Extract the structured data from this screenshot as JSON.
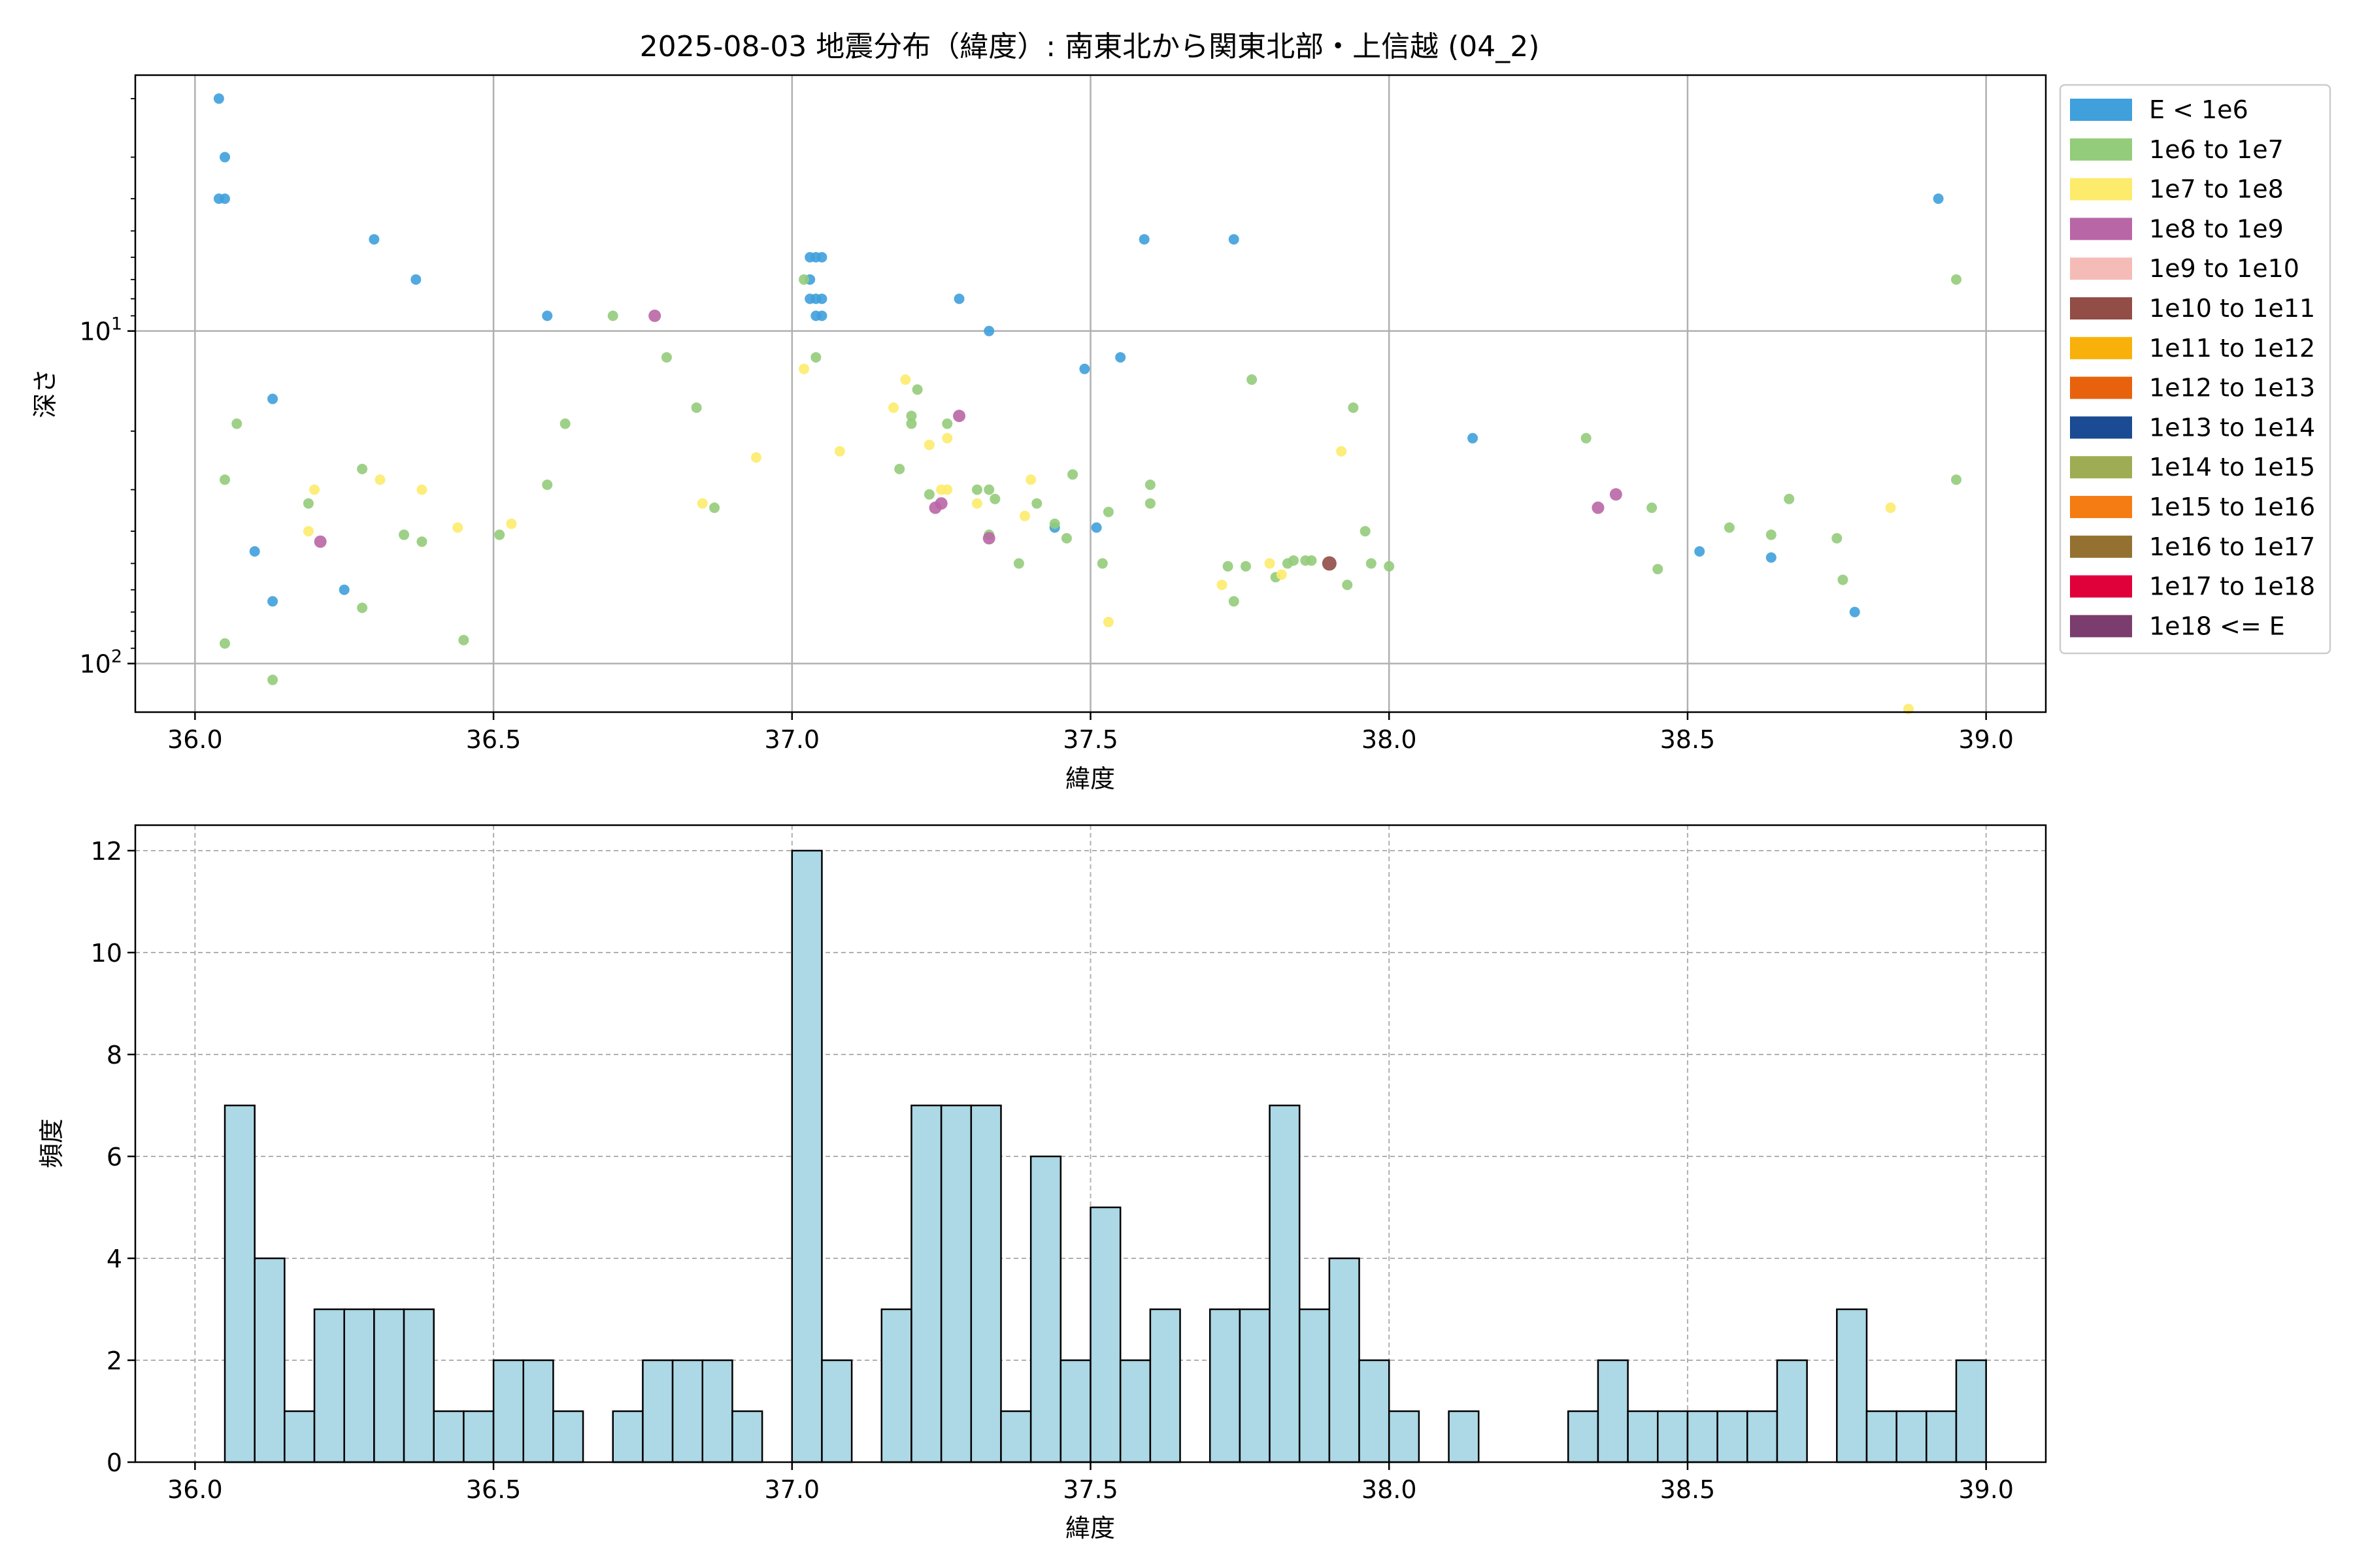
{
  "chart_data": [
    {
      "type": "scatter",
      "title": "2025-08-03 地震分布（緯度）: 南東北から関東北部・上信越 (04_2)",
      "xlabel": "緯度",
      "ylabel": "深さ",
      "xlim": [
        35.9,
        39.1
      ],
      "ylim": [
        140,
        1.7
      ],
      "yscale": "log",
      "yaxis_inverted": true,
      "xticks": [
        "36.0",
        "36.5",
        "37.0",
        "37.5",
        "38.0",
        "38.5",
        "39.0"
      ],
      "yticks": [
        {
          "value": 10,
          "label": "10^1"
        },
        {
          "value": 100,
          "label": "10^2"
        }
      ],
      "grid": true,
      "legend_position": "outside-right",
      "legend": [
        {
          "label": "E < 1e6",
          "color": "#3fa0db"
        },
        {
          "label": "1e6 to 1e7",
          "color": "#93cc7a"
        },
        {
          "label": "1e7 to 1e8",
          "color": "#fdeb6b"
        },
        {
          "label": "1e8 to 1e9",
          "color": "#b966a6"
        },
        {
          "label": "1e9 to 1e10",
          "color": "#f5bcb7"
        },
        {
          "label": "1e10 to 1e11",
          "color": "#914d46"
        },
        {
          "label": "1e11 to 1e12",
          "color": "#f8b10a"
        },
        {
          "label": "1e12 to 1e13",
          "color": "#e8620e"
        },
        {
          "label": "1e13 to 1e14",
          "color": "#1a4b93"
        },
        {
          "label": "1e14 to 1e15",
          "color": "#9ead54"
        },
        {
          "label": "1e15 to 1e16",
          "color": "#f57c13"
        },
        {
          "label": "1e16 to 1e17",
          "color": "#957131"
        },
        {
          "label": "1e17 to 1e18",
          "color": "#e0003a"
        },
        {
          "label": "1e18 <= E",
          "color": "#7b3d6e"
        }
      ],
      "series": [
        {
          "name": "E < 1e6",
          "points": [
            [
              36.04,
              2.0
            ],
            [
              36.05,
              3.0
            ],
            [
              36.04,
              4.0
            ],
            [
              36.05,
              4.0
            ],
            [
              36.3,
              5.3
            ],
            [
              36.37,
              7.0
            ],
            [
              36.59,
              9.0
            ],
            [
              36.1,
              46
            ],
            [
              36.13,
              16
            ],
            [
              36.13,
              65
            ],
            [
              36.25,
              60
            ],
            [
              37.03,
              6.0
            ],
            [
              37.04,
              6.0
            ],
            [
              37.05,
              6.0
            ],
            [
              37.03,
              7.0
            ],
            [
              37.03,
              8.0
            ],
            [
              37.04,
              8.0
            ],
            [
              37.05,
              8.0
            ],
            [
              37.05,
              9.0
            ],
            [
              37.04,
              9.0
            ],
            [
              37.28,
              8.0
            ],
            [
              37.33,
              10.0
            ],
            [
              37.49,
              13
            ],
            [
              37.55,
              12
            ],
            [
              37.59,
              5.3
            ],
            [
              37.74,
              5.3
            ],
            [
              37.44,
              39
            ],
            [
              37.51,
              39
            ],
            [
              38.14,
              21
            ],
            [
              38.52,
              46
            ],
            [
              38.64,
              48
            ],
            [
              38.78,
              70
            ],
            [
              38.92,
              4.0
            ]
          ]
        },
        {
          "name": "1e6 to 1e7",
          "points": [
            [
              36.05,
              28
            ],
            [
              36.05,
              87
            ],
            [
              36.07,
              19
            ],
            [
              36.13,
              112
            ],
            [
              36.19,
              33
            ],
            [
              36.28,
              26
            ],
            [
              36.28,
              68
            ],
            [
              36.35,
              41
            ],
            [
              36.38,
              43
            ],
            [
              36.45,
              85
            ],
            [
              36.51,
              41
            ],
            [
              36.59,
              29
            ],
            [
              36.62,
              19
            ],
            [
              36.7,
              9.0
            ],
            [
              36.79,
              12
            ],
            [
              36.84,
              17
            ],
            [
              36.87,
              34
            ],
            [
              37.02,
              7.0
            ],
            [
              37.04,
              12
            ],
            [
              37.18,
              26
            ],
            [
              37.2,
              18
            ],
            [
              37.2,
              19
            ],
            [
              37.21,
              15
            ],
            [
              37.23,
              31
            ],
            [
              37.26,
              19
            ],
            [
              37.31,
              30
            ],
            [
              37.33,
              30
            ],
            [
              37.34,
              32
            ],
            [
              37.33,
              41
            ],
            [
              37.38,
              50
            ],
            [
              37.41,
              33
            ],
            [
              37.44,
              38
            ],
            [
              37.46,
              42
            ],
            [
              37.47,
              27
            ],
            [
              37.52,
              50
            ],
            [
              37.53,
              35
            ],
            [
              37.6,
              29
            ],
            [
              37.6,
              33
            ],
            [
              37.73,
              51
            ],
            [
              37.74,
              65
            ],
            [
              37.76,
              51
            ],
            [
              37.77,
              14
            ],
            [
              37.81,
              55
            ],
            [
              37.83,
              50
            ],
            [
              37.84,
              49
            ],
            [
              37.86,
              49
            ],
            [
              37.87,
              49
            ],
            [
              37.93,
              58
            ],
            [
              37.94,
              17
            ],
            [
              37.96,
              40
            ],
            [
              37.97,
              50
            ],
            [
              38.0,
              51
            ],
            [
              38.33,
              21
            ],
            [
              38.44,
              34
            ],
            [
              38.45,
              52
            ],
            [
              38.57,
              39
            ],
            [
              38.64,
              41
            ],
            [
              38.67,
              32
            ],
            [
              38.75,
              42
            ],
            [
              38.76,
              56
            ],
            [
              38.95,
              28
            ],
            [
              38.95,
              7.0
            ]
          ]
        },
        {
          "name": "1e7 to 1e8",
          "points": [
            [
              36.19,
              40
            ],
            [
              36.2,
              30
            ],
            [
              36.31,
              28
            ],
            [
              36.38,
              30
            ],
            [
              36.44,
              39
            ],
            [
              36.53,
              38
            ],
            [
              36.85,
              33
            ],
            [
              36.94,
              24
            ],
            [
              37.02,
              13
            ],
            [
              37.08,
              23
            ],
            [
              37.17,
              17
            ],
            [
              37.19,
              14
            ],
            [
              37.23,
              22
            ],
            [
              37.25,
              30
            ],
            [
              37.26,
              30
            ],
            [
              37.26,
              21
            ],
            [
              37.31,
              33
            ],
            [
              37.39,
              36
            ],
            [
              37.4,
              28
            ],
            [
              37.53,
              75
            ],
            [
              37.72,
              58
            ],
            [
              37.8,
              50
            ],
            [
              37.82,
              54
            ],
            [
              37.92,
              23
            ],
            [
              38.84,
              34
            ],
            [
              38.87,
              137
            ]
          ]
        },
        {
          "name": "1e8 to 1e9",
          "points": [
            [
              36.21,
              43
            ],
            [
              36.77,
              9.0
            ],
            [
              37.24,
              34
            ],
            [
              37.25,
              33
            ],
            [
              37.28,
              18
            ],
            [
              37.33,
              42
            ],
            [
              38.35,
              34
            ],
            [
              38.38,
              31
            ]
          ]
        },
        {
          "name": "1e10 to 1e11",
          "points": [
            [
              37.9,
              50
            ]
          ]
        }
      ]
    },
    {
      "type": "bar",
      "xlabel": "緯度",
      "ylabel": "頻度",
      "xlim": [
        35.9,
        39.1
      ],
      "ylim": [
        0,
        12.5
      ],
      "bin_start": 36.0,
      "bin_width": 0.05,
      "xticks": [
        "36.0",
        "36.5",
        "37.0",
        "37.5",
        "38.0",
        "38.5",
        "39.0"
      ],
      "yticks": [
        "0",
        "2",
        "4",
        "6",
        "8",
        "10",
        "12"
      ],
      "grid": true,
      "bar_color": "#add8e6",
      "values": [
        0,
        7,
        4,
        1,
        3,
        3,
        3,
        3,
        1,
        1,
        2,
        2,
        1,
        0,
        1,
        2,
        2,
        2,
        1,
        0,
        12,
        2,
        0,
        3,
        7,
        7,
        7,
        1,
        6,
        2,
        5,
        2,
        3,
        0,
        3,
        3,
        7,
        3,
        4,
        2,
        1,
        0,
        1,
        0,
        0,
        0,
        1,
        2,
        1,
        1,
        1,
        1,
        1,
        2,
        0,
        3,
        1,
        1,
        1,
        2
      ]
    }
  ]
}
